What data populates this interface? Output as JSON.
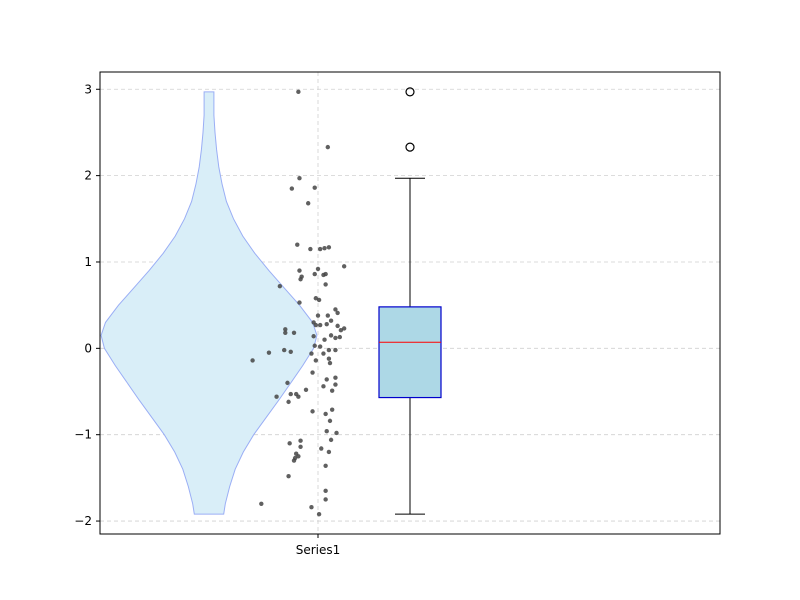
{
  "chart_data": {
    "type": "violin+box+strip",
    "categories": [
      "Series1"
    ],
    "ylim": [
      -2.15,
      3.2
    ],
    "yticks": [
      -2,
      -1,
      0,
      1,
      2,
      3
    ],
    "ytick_labels": [
      "−2",
      "−1",
      "0",
      "1",
      "2",
      "3"
    ],
    "grid": true,
    "colors": {
      "violin_fill": "#d9eef8",
      "violin_edge": "#9aaef5",
      "box_fill": "#add8e6",
      "box_edge": "#0000cc",
      "median": "#ff0000",
      "points": "#444444"
    },
    "box": {
      "q1": -0.57,
      "median": 0.07,
      "q3": 0.48,
      "whisker_low": -1.92,
      "whisker_high": 1.97,
      "outliers": [
        2.33,
        2.97
      ]
    },
    "violin_density": [
      [
        -1.92,
        0.27
      ],
      [
        -1.8,
        0.3
      ],
      [
        -1.6,
        0.38
      ],
      [
        -1.4,
        0.48
      ],
      [
        -1.2,
        0.63
      ],
      [
        -1.0,
        0.82
      ],
      [
        -0.8,
        1.05
      ],
      [
        -0.6,
        1.28
      ],
      [
        -0.4,
        1.5
      ],
      [
        -0.2,
        1.72
      ],
      [
        0.0,
        1.92
      ],
      [
        0.15,
        1.98
      ],
      [
        0.3,
        1.9
      ],
      [
        0.5,
        1.66
      ],
      [
        0.7,
        1.38
      ],
      [
        0.9,
        1.1
      ],
      [
        1.1,
        0.84
      ],
      [
        1.3,
        0.62
      ],
      [
        1.5,
        0.45
      ],
      [
        1.7,
        0.32
      ],
      [
        1.9,
        0.24
      ],
      [
        2.1,
        0.18
      ],
      [
        2.3,
        0.14
      ],
      [
        2.5,
        0.11
      ],
      [
        2.7,
        0.09
      ],
      [
        2.97,
        0.09
      ]
    ],
    "points": [
      [
        -0.18,
        2.97
      ],
      [
        0.09,
        2.33
      ],
      [
        -0.17,
        1.97
      ],
      [
        -0.24,
        1.85
      ],
      [
        -0.03,
        1.86
      ],
      [
        -0.09,
        1.68
      ],
      [
        -0.19,
        1.2
      ],
      [
        -0.07,
        1.15
      ],
      [
        0.06,
        1.16
      ],
      [
        0.02,
        1.15
      ],
      [
        0.1,
        1.17
      ],
      [
        0.24,
        0.95
      ],
      [
        0.0,
        0.92
      ],
      [
        -0.17,
        0.9
      ],
      [
        -0.03,
        0.86
      ],
      [
        0.05,
        0.85
      ],
      [
        0.07,
        0.86
      ],
      [
        -0.15,
        0.83
      ],
      [
        -0.16,
        0.8
      ],
      [
        0.07,
        0.74
      ],
      [
        -0.35,
        0.72
      ],
      [
        -0.02,
        0.58
      ],
      [
        0.01,
        0.56
      ],
      [
        -0.17,
        0.53
      ],
      [
        0.16,
        0.45
      ],
      [
        0.18,
        0.41
      ],
      [
        0.09,
        0.38
      ],
      [
        0.0,
        0.38
      ],
      [
        0.12,
        0.32
      ],
      [
        -0.04,
        0.3
      ],
      [
        -0.02,
        0.27
      ],
      [
        0.02,
        0.27
      ],
      [
        0.08,
        0.28
      ],
      [
        0.18,
        0.26
      ],
      [
        0.21,
        0.21
      ],
      [
        0.24,
        0.23
      ],
      [
        -0.3,
        0.22
      ],
      [
        -0.3,
        0.18
      ],
      [
        -0.22,
        0.18
      ],
      [
        -0.04,
        0.14
      ],
      [
        0.2,
        0.13
      ],
      [
        0.12,
        0.15
      ],
      [
        0.06,
        0.1
      ],
      [
        0.16,
        0.12
      ],
      [
        -0.03,
        0.03
      ],
      [
        0.02,
        0.02
      ],
      [
        0.1,
        -0.02
      ],
      [
        0.16,
        -0.02
      ],
      [
        -0.31,
        -0.02
      ],
      [
        -0.25,
        -0.04
      ],
      [
        -0.45,
        -0.05
      ],
      [
        -0.06,
        -0.06
      ],
      [
        0.05,
        -0.06
      ],
      [
        0.1,
        -0.12
      ],
      [
        -0.6,
        -0.14
      ],
      [
        -0.02,
        -0.14
      ],
      [
        0.11,
        -0.17
      ],
      [
        -0.05,
        -0.28
      ],
      [
        0.16,
        -0.34
      ],
      [
        0.08,
        -0.36
      ],
      [
        -0.28,
        -0.4
      ],
      [
        0.16,
        -0.42
      ],
      [
        0.05,
        -0.44
      ],
      [
        -0.11,
        -0.48
      ],
      [
        0.13,
        -0.49
      ],
      [
        -0.2,
        -0.53
      ],
      [
        -0.25,
        -0.53
      ],
      [
        -0.18,
        -0.56
      ],
      [
        -0.38,
        -0.56
      ],
      [
        -0.27,
        -0.62
      ],
      [
        0.13,
        -0.71
      ],
      [
        -0.05,
        -0.73
      ],
      [
        0.07,
        -0.76
      ],
      [
        0.11,
        -0.84
      ],
      [
        0.08,
        -0.96
      ],
      [
        0.17,
        -0.98
      ],
      [
        0.12,
        -1.06
      ],
      [
        -0.16,
        -1.07
      ],
      [
        -0.26,
        -1.1
      ],
      [
        -0.16,
        -1.14
      ],
      [
        0.03,
        -1.16
      ],
      [
        0.1,
        -1.2
      ],
      [
        -0.2,
        -1.22
      ],
      [
        -0.18,
        -1.25
      ],
      [
        -0.21,
        -1.27
      ],
      [
        -0.22,
        -1.3
      ],
      [
        0.07,
        -1.36
      ],
      [
        -0.27,
        -1.48
      ],
      [
        0.07,
        -1.65
      ],
      [
        0.07,
        -1.75
      ],
      [
        -0.52,
        -1.8
      ],
      [
        -0.06,
        -1.84
      ],
      [
        0.01,
        -1.92
      ]
    ]
  }
}
